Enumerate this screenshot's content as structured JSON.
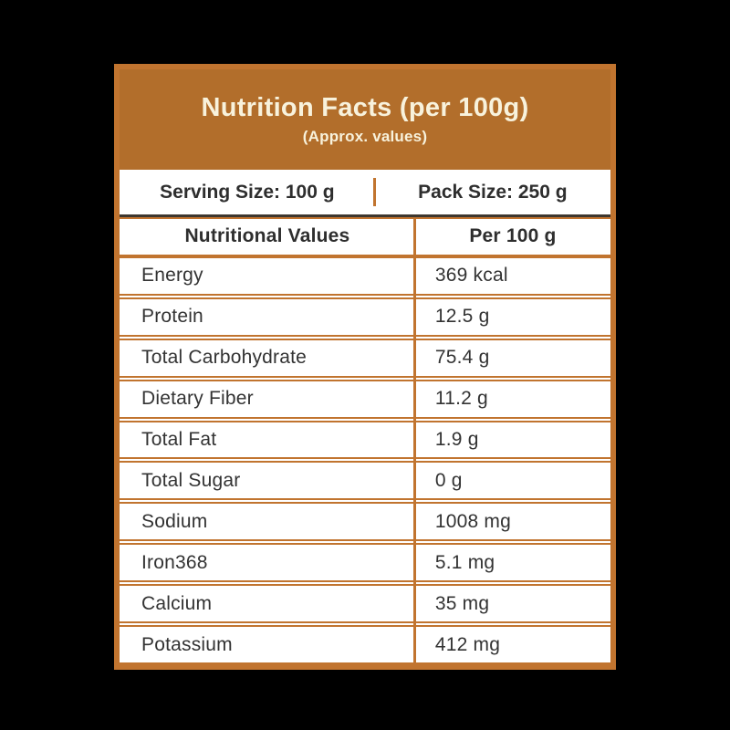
{
  "canvas": {
    "background": "#000000"
  },
  "card": {
    "border_color": "#C1742F",
    "header": {
      "background": "#B26E2B",
      "text_color": "#F8F2DC",
      "title": "Nutrition Facts (per 100g)",
      "subtitle": "(Approx. values)"
    },
    "serving_row": {
      "left_label": "Serving Size: 100 g",
      "right_label": "Pack Size: 250 g",
      "divider_color": "#C1742F",
      "bottom_line_color": "#3D372F"
    },
    "table": {
      "column_headers": {
        "left": "Nutritional Values",
        "right": "Per 100 g"
      },
      "rows": [
        {
          "label": "Energy",
          "value": "369 kcal"
        },
        {
          "label": "Protein",
          "value": "12.5 g"
        },
        {
          "label": "Total Carbohydrate",
          "value": "75.4 g"
        },
        {
          "label": "Dietary Fiber",
          "value": "11.2 g"
        },
        {
          "label": "Total Fat",
          "value": "1.9 g"
        },
        {
          "label": "Total Sugar",
          "value": "0 g"
        },
        {
          "label": "Sodium",
          "value": "1008 mg"
        },
        {
          "label": "Iron368",
          "value": "5.1 mg"
        },
        {
          "label": "Calcium",
          "value": "35 mg"
        },
        {
          "label": "Potassium",
          "value": "412 mg"
        }
      ]
    }
  }
}
